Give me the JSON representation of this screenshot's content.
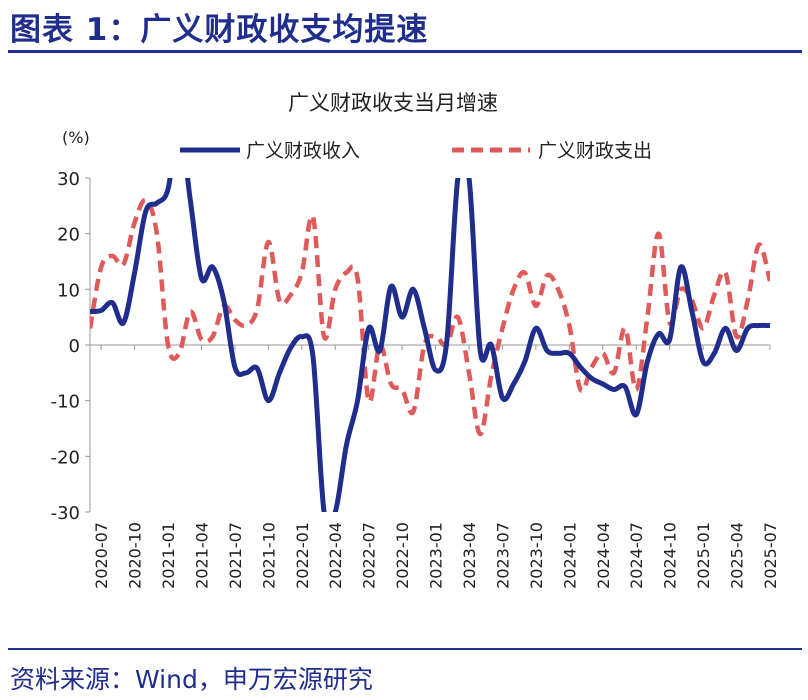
{
  "header": {
    "figure_title": "图表 1：广义财政收支均提速"
  },
  "footer": {
    "source": "资料来源：Wind，申万宏源研究"
  },
  "colors": {
    "brand": "#1f2d8c",
    "revenue": "#1f2d8c",
    "expenditure": "#e05a5a"
  },
  "chart_data": {
    "type": "line",
    "title": "广义财政收支当月增速",
    "ylabel": "(%)",
    "xlabel": "",
    "ylim": [
      -30,
      30
    ],
    "yticks": [
      30,
      20,
      10,
      0,
      -10,
      -20,
      -30
    ],
    "grid": false,
    "legend_position": "top",
    "x": [
      "2020-06",
      "2020-07",
      "2020-08",
      "2020-09",
      "2020-10",
      "2020-11",
      "2020-12",
      "2021-01",
      "2021-02",
      "2021-03",
      "2021-04",
      "2021-05",
      "2021-06",
      "2021-07",
      "2021-08",
      "2021-09",
      "2021-10",
      "2021-11",
      "2021-12",
      "2022-01",
      "2022-02",
      "2022-03",
      "2022-04",
      "2022-05",
      "2022-06",
      "2022-07",
      "2022-08",
      "2022-09",
      "2022-10",
      "2022-11",
      "2022-12",
      "2023-01",
      "2023-02",
      "2023-03",
      "2023-04",
      "2023-05",
      "2023-06",
      "2023-07",
      "2023-08",
      "2023-09",
      "2023-10",
      "2023-11",
      "2023-12",
      "2024-01",
      "2024-02",
      "2024-03",
      "2024-04",
      "2024-05",
      "2024-06",
      "2024-07",
      "2024-08",
      "2024-09",
      "2024-10",
      "2024-11",
      "2024-12",
      "2025-01",
      "2025-02",
      "2025-03",
      "2025-04",
      "2025-05",
      "2025-06",
      "2025-07"
    ],
    "x_tick_labels": [
      "2020-07",
      "2020-10",
      "2021-01",
      "2021-04",
      "2021-07",
      "2021-10",
      "2022-01",
      "2022-04",
      "2022-07",
      "2022-10",
      "2023-01",
      "2023-04",
      "2023-07",
      "2023-10",
      "2024-01",
      "2024-04",
      "2024-07",
      "2024-10",
      "2025-01",
      "2025-04",
      "2025-07"
    ],
    "series": [
      {
        "name": "广义财政收入",
        "style": "solid",
        "values": [
          6.0,
          6.2,
          7.6,
          4.0,
          13.0,
          24.0,
          25.5,
          28.0,
          40.0,
          26.0,
          12.0,
          14.0,
          8.0,
          -4.0,
          -5.0,
          -4.2,
          -10.0,
          -5.0,
          -0.5,
          1.5,
          -2.0,
          -30.0,
          -30.0,
          -18.0,
          -10.0,
          3.0,
          -1.0,
          10.5,
          5.0,
          10.0,
          3.0,
          -4.5,
          0.5,
          30.0,
          30.0,
          -1.0,
          0.0,
          -9.5,
          -7.0,
          -3.0,
          3.0,
          -1.0,
          -1.5,
          -1.5,
          -4.0,
          -6.0,
          -7.0,
          -8.0,
          -7.5,
          -12.5,
          -3.0,
          2.0,
          1.0,
          14.0,
          6.0,
          -3.0,
          -1.5,
          3.0,
          -1.0,
          3.0,
          3.5,
          3.5
        ]
      },
      {
        "name": "广义财政支出",
        "style": "dashed",
        "values": [
          3.0,
          14.0,
          16.0,
          14.5,
          22.0,
          26.0,
          20.0,
          0.0,
          -1.5,
          6.0,
          1.0,
          1.5,
          7.0,
          4.5,
          3.5,
          6.5,
          18.5,
          8.0,
          9.0,
          13.0,
          23.0,
          1.5,
          10.0,
          13.0,
          12.0,
          -10.0,
          0.0,
          -7.0,
          -8.0,
          -12.0,
          0.0,
          1.5,
          0.0,
          5.0,
          -5.0,
          -16.0,
          -5.5,
          3.0,
          10.0,
          13.0,
          7.0,
          12.5,
          10.0,
          3.5,
          -8.0,
          -4.0,
          -1.5,
          -5.0,
          3.0,
          -8.0,
          5.0,
          20.0,
          4.0,
          10.0,
          8.0,
          3.0,
          9.0,
          13.0,
          1.5,
          8.0,
          18.0,
          11.5
        ]
      }
    ]
  }
}
